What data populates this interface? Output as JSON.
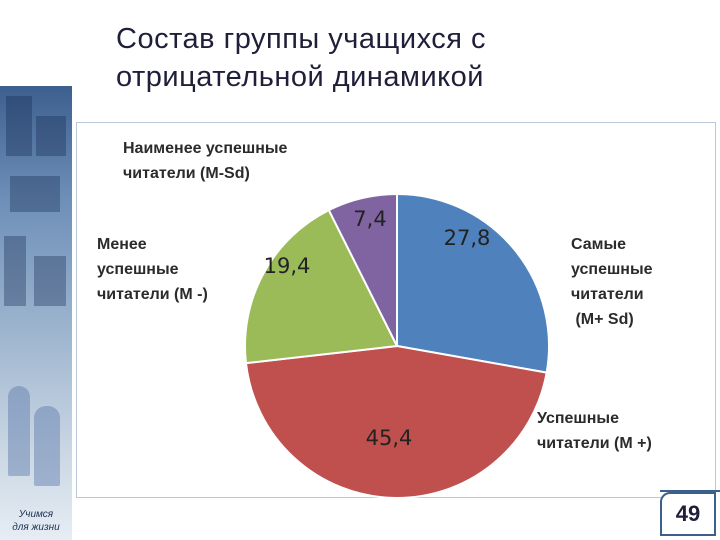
{
  "title": "Состав группы учащихся с отрицательной динамикой",
  "sidebar": {
    "caption_line1": "Учимся",
    "caption_line2": "для жизни"
  },
  "page_number": "49",
  "chart_data": {
    "type": "pie",
    "title": "",
    "slices": [
      {
        "label_lines": [
          "Самые",
          "успешные",
          "читатели",
          " (M+ Sd)"
        ],
        "value": 27.8,
        "display": "27,8",
        "color": "#4f81bd"
      },
      {
        "label_lines": [
          "Успешные",
          "читатели (М +)"
        ],
        "value": 45.4,
        "display": "45,4",
        "color": "#c0504d"
      },
      {
        "label_lines": [
          "Менее",
          "успешные",
          "читатели (М -)"
        ],
        "value": 19.4,
        "display": "19,4",
        "color": "#9bbb59"
      },
      {
        "label_lines": [
          "Наименее успешные",
          "читатели (M-Sd)"
        ],
        "value": 7.4,
        "display": "7,4",
        "color": "#8064a2"
      }
    ]
  }
}
